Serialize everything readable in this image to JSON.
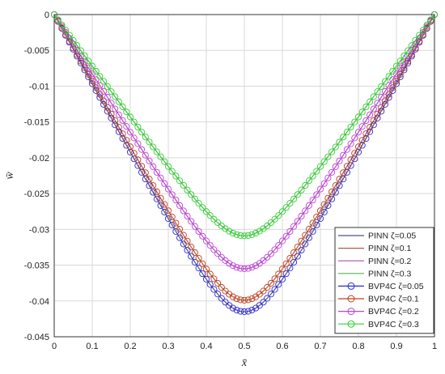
{
  "chart_data": {
    "type": "line",
    "title": "",
    "xlabel": "x̄",
    "ylabel": "w̄",
    "xlim": [
      0,
      1
    ],
    "ylim": [
      -0.045,
      0
    ],
    "grid": true,
    "legend_position": "bottom-right",
    "x_ticks": [
      "0",
      "0.1",
      "0.2",
      "0.3",
      "0.4",
      "0.5",
      "0.6",
      "0.7",
      "0.8",
      "0.9",
      "1"
    ],
    "y_ticks": [
      "0",
      "-0.005",
      "-0.01",
      "-0.015",
      "-0.02",
      "-0.025",
      "-0.03",
      "-0.035",
      "-0.04",
      "-0.045"
    ],
    "x_tick_values": [
      0,
      0.1,
      0.2,
      0.3,
      0.4,
      0.5,
      0.6,
      0.7,
      0.8,
      0.9,
      1
    ],
    "y_tick_values": [
      0,
      -0.005,
      -0.01,
      -0.015,
      -0.02,
      -0.025,
      -0.03,
      -0.035,
      -0.04,
      -0.045
    ],
    "series": [
      {
        "name": "PINN  ζ=0.05",
        "kind": "line",
        "color": "#4a4f8c",
        "min": -0.0415
      },
      {
        "name": "PINN  ζ=0.1",
        "kind": "line",
        "color": "#b05a4a",
        "min": -0.0399
      },
      {
        "name": "PINN  ζ=0.2",
        "kind": "line",
        "color": "#b04fb0",
        "min": -0.0355
      },
      {
        "name": "PINN  ζ=0.3",
        "kind": "line",
        "color": "#4fb84f",
        "min": -0.0309
      },
      {
        "name": "BVP4C  ζ=0.05",
        "kind": "marker",
        "color": "#2b2bd0",
        "min": -0.0415
      },
      {
        "name": "BVP4C  ζ=0.1",
        "kind": "marker",
        "color": "#c0401a",
        "min": -0.0399
      },
      {
        "name": "BVP4C  ζ=0.2",
        "kind": "marker",
        "color": "#c040e0",
        "min": -0.0355
      },
      {
        "name": "BVP4C  ζ=0.3",
        "kind": "marker",
        "color": "#30d030",
        "min": -0.0309
      }
    ]
  }
}
